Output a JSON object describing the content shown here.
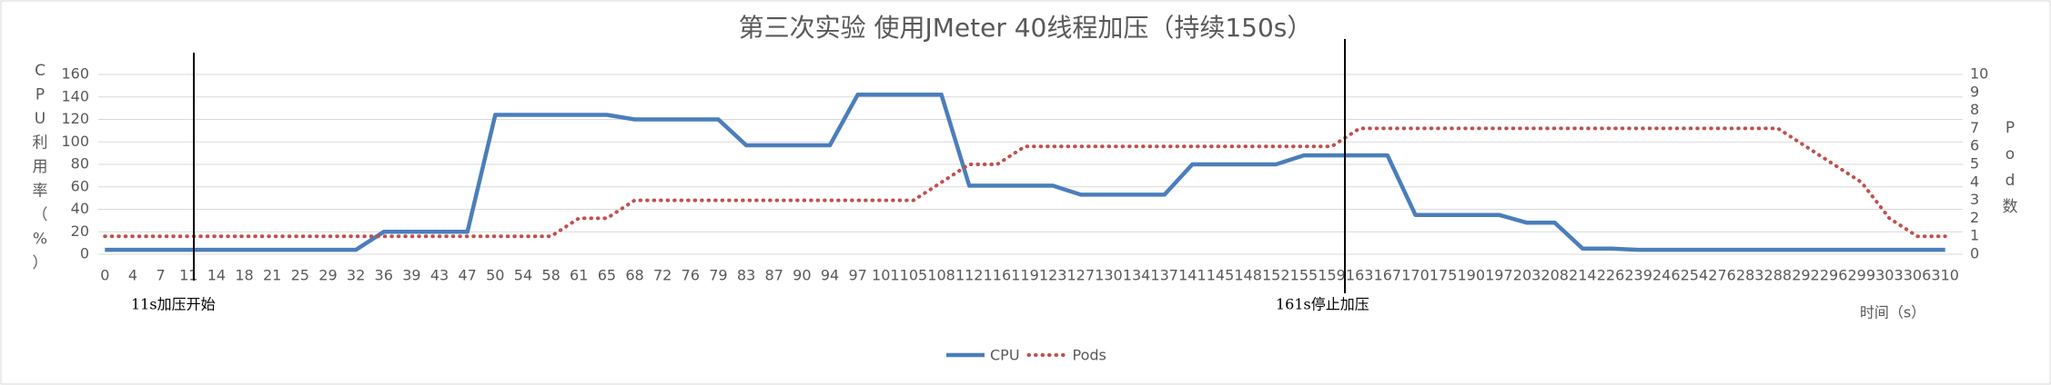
{
  "chart_data": {
    "type": "line",
    "title": "第三次实验 使用JMeter 40线程加压（持续150s）",
    "y_label": "CPU利用率（%）",
    "y2_label": "Pod数",
    "x_label": "时间（s）",
    "categories": [
      "0",
      "4",
      "7",
      "11",
      "14",
      "18",
      "21",
      "25",
      "29",
      "32",
      "36",
      "39",
      "43",
      "47",
      "50",
      "54",
      "58",
      "61",
      "65",
      "68",
      "72",
      "76",
      "79",
      "83",
      "87",
      "90",
      "94",
      "97",
      "101",
      "105",
      "108",
      "112",
      "116",
      "119",
      "123",
      "127",
      "130",
      "134",
      "137",
      "141",
      "145",
      "148",
      "152",
      "155",
      "159",
      "163",
      "167",
      "170",
      "175",
      "190",
      "197",
      "203",
      "208",
      "214",
      "226",
      "239",
      "246",
      "254",
      "276",
      "283",
      "288",
      "292",
      "296",
      "299",
      "303",
      "306",
      "310"
    ],
    "series": [
      {
        "name": "CPU",
        "color": "#4a7ebb",
        "axis": "y",
        "values": [
          4,
          4,
          4,
          4,
          4,
          4,
          4,
          4,
          4,
          4,
          20,
          20,
          20,
          20,
          124,
          124,
          124,
          124,
          124,
          120,
          120,
          120,
          120,
          97,
          97,
          97,
          97,
          142,
          142,
          142,
          142,
          61,
          61,
          61,
          61,
          53,
          53,
          53,
          53,
          80,
          80,
          80,
          80,
          88,
          88,
          88,
          88,
          35,
          35,
          35,
          35,
          28,
          28,
          5,
          5,
          4,
          4,
          4,
          4,
          4,
          4,
          4,
          4,
          4,
          4,
          4,
          4
        ]
      },
      {
        "name": "Pods",
        "color": "#c0504d",
        "axis": "y2",
        "dashed": true,
        "values": [
          1,
          1,
          1,
          1,
          1,
          1,
          1,
          1,
          1,
          1,
          1,
          1,
          1,
          1,
          1,
          1,
          1,
          2,
          2,
          3,
          3,
          3,
          3,
          3,
          3,
          3,
          3,
          3,
          3,
          3,
          4,
          5,
          5,
          6,
          6,
          6,
          6,
          6,
          6,
          6,
          6,
          6,
          6,
          6,
          6,
          7,
          7,
          7,
          7,
          7,
          7,
          7,
          7,
          7,
          7,
          7,
          7,
          7,
          7,
          7,
          7,
          6,
          5,
          4,
          2,
          1,
          1
        ]
      }
    ],
    "ylim": [
      0,
      160
    ],
    "yticks": [
      0,
      20,
      40,
      60,
      80,
      100,
      120,
      140,
      160
    ],
    "y2lim": [
      0,
      10
    ],
    "y2ticks": [
      0,
      1,
      2,
      3,
      4,
      5,
      6,
      7,
      8,
      9,
      10
    ],
    "grid": true,
    "legend": "bottom",
    "annotations": [
      {
        "text": "11s加压开始"
      },
      {
        "text": "161s停止加压"
      }
    ]
  }
}
